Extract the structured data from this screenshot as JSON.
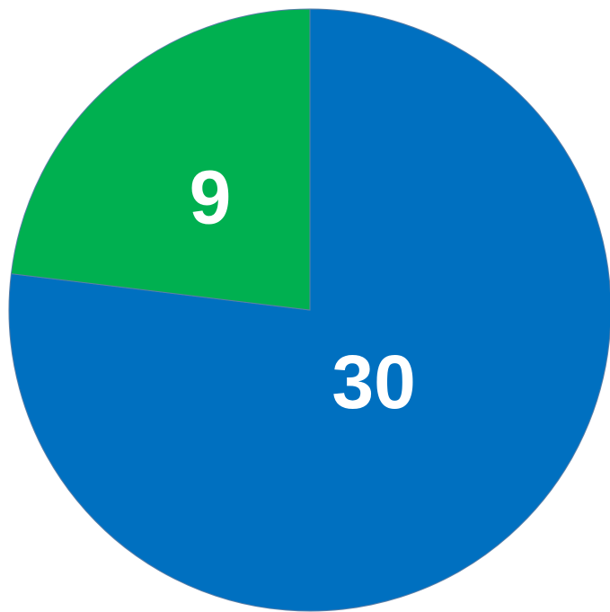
{
  "chart_data": {
    "type": "pie",
    "title": "",
    "slices": [
      {
        "label": "30",
        "value": 30,
        "color": "#0070C0"
      },
      {
        "label": "9",
        "value": 9,
        "color": "#00B050"
      }
    ],
    "start_angle_deg": 0,
    "direction": "clockwise",
    "legend": "none"
  }
}
